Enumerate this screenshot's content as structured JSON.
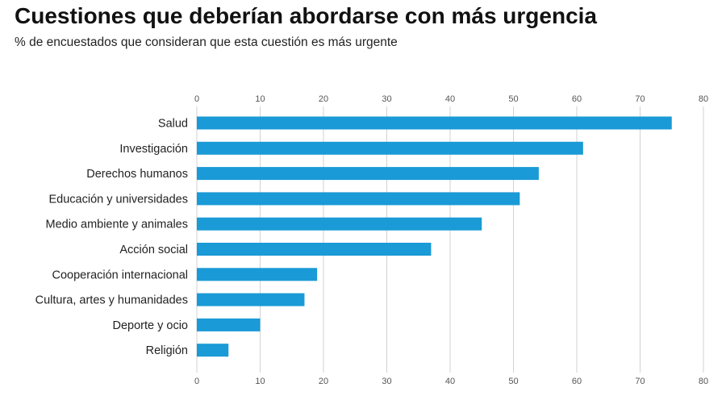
{
  "header": {
    "title": "Cuestiones que deberían abordarse con más urgencia",
    "subtitle": "% de encuestados que consideran que esta cuestión es más urgente"
  },
  "colors": {
    "bar": "#1a9ad6",
    "grid": "#d2d2d2"
  },
  "chart_data": {
    "type": "bar",
    "orientation": "horizontal",
    "title": "Cuestiones que deberían abordarse con más urgencia",
    "subtitle": "% de encuestados que consideran que esta cuestión es más urgente",
    "xlabel": "",
    "ylabel": "",
    "categories": [
      "Salud",
      "Investigación",
      "Derechos humanos",
      "Educación y universidades",
      "Medio ambiente y animales",
      "Acción social",
      "Cooperación internacional",
      "Cultura, artes y humanidades",
      "Deporte y ocio",
      "Religión"
    ],
    "values": [
      75,
      61,
      54,
      51,
      45,
      37,
      19,
      17,
      10,
      5
    ],
    "xlim": [
      0,
      80
    ],
    "xticks": [
      0,
      10,
      20,
      30,
      40,
      50,
      60,
      70,
      80
    ],
    "xtick_labels": [
      "0",
      "10",
      "20",
      "30",
      "40",
      "50",
      "60",
      "70",
      "80"
    ],
    "tick_positions": "top-and-bottom",
    "grid": true,
    "legend": false
  }
}
